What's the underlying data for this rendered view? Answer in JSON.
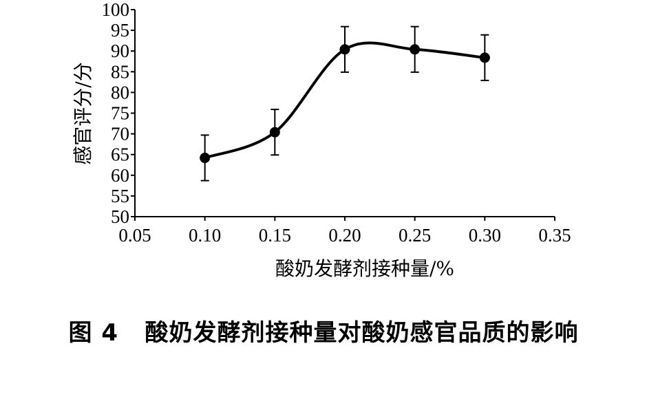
{
  "chart_data": {
    "type": "line",
    "ylabel": "感官评分/分",
    "xlabel": "酸奶发酵剂接种量/%",
    "xlim": [
      0.05,
      0.35
    ],
    "ylim": [
      50,
      100
    ],
    "x_ticks": [
      "0.05",
      "0.10",
      "0.15",
      "0.20",
      "0.25",
      "0.30",
      "0.35"
    ],
    "y_ticks": [
      "50",
      "55",
      "60",
      "65",
      "70",
      "75",
      "80",
      "85",
      "90",
      "95",
      "100"
    ],
    "series": [
      {
        "x": [
          0.1,
          0.15,
          0.2,
          0.25,
          0.3
        ],
        "values": [
          64.2,
          70.4,
          90.4,
          90.4,
          88.4
        ],
        "error_low": [
          58.7,
          64.9,
          84.9,
          84.9,
          82.9
        ],
        "error_high": [
          69.7,
          75.9,
          95.9,
          95.9,
          93.9
        ]
      }
    ],
    "line_style": "smooth",
    "marker": "filled-circle",
    "grid": false,
    "colors": {
      "line": "#000000",
      "marker": "#000000"
    }
  },
  "caption": {
    "label": "图 4",
    "text": "酸奶发酵剂接种量对酸奶感官品质的影响"
  }
}
